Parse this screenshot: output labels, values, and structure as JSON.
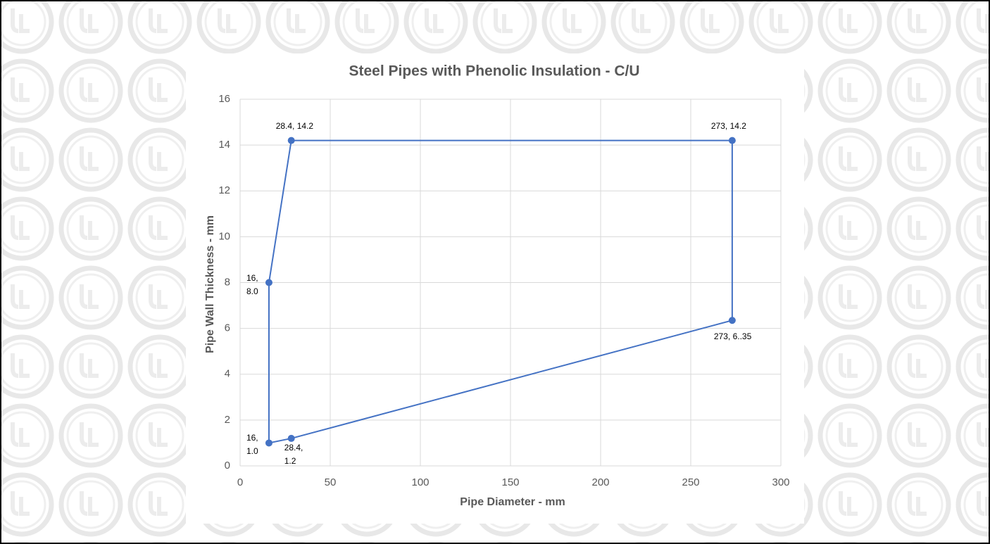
{
  "chart_data": {
    "type": "line",
    "title": "Steel Pipes with Phenolic Insulation - C/U",
    "x_label": "Pipe Diameter - mm",
    "y_label": "Pipe Wall Thickness - mm",
    "x": [
      16,
      28.4,
      273,
      273,
      28.4,
      16
    ],
    "y": [
      8.0,
      14.2,
      14.2,
      6.35,
      1.2,
      1.0
    ],
    "value_labels": [
      "16, 8.0",
      "28.4, 14.2",
      "273, 14.2",
      "273, 6..35",
      "28.4, 1.2",
      "16, 1.0"
    ],
    "closed": true,
    "color": "#4472c4",
    "xlim": [
      0,
      300
    ],
    "xticks": [
      0,
      50,
      100,
      150,
      200,
      250,
      300
    ],
    "ylim": [
      0,
      16
    ],
    "yticks": [
      0,
      2,
      4,
      6,
      8,
      10,
      12,
      14,
      16
    ],
    "grid": true
  }
}
